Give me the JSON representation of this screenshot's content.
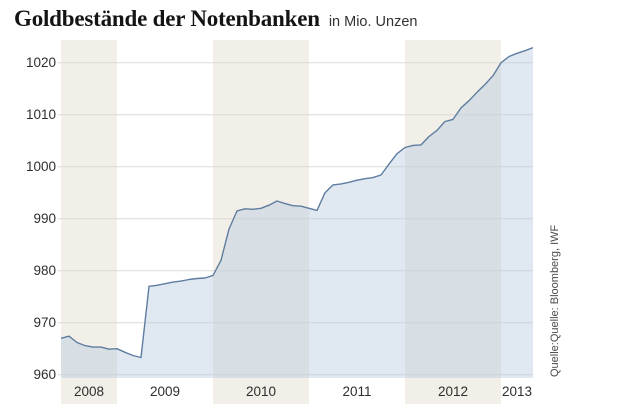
{
  "header": {
    "title": "Goldbestände der Notenbanken",
    "subtitle": "in Mio. Unzen"
  },
  "source": "Quelle:Quelle: Bloomberg, IWF",
  "chart_data": {
    "type": "area",
    "title": "Goldbestände der Notenbanken",
    "unit": "Mio. Unzen",
    "grid": "horizontal gridlines on",
    "legend": "none",
    "ylim": [
      959.5,
      1024.5
    ],
    "y_ticks": [
      960,
      970,
      980,
      990,
      1000,
      1010,
      1020
    ],
    "x_year_labels": [
      "2008",
      "2009",
      "2010",
      "2011",
      "2012",
      "2013"
    ],
    "shaded_year_bands": [
      "2008",
      "2010",
      "2012"
    ],
    "x": [
      "2008-06",
      "2008-07",
      "2008-08",
      "2008-09",
      "2008-10",
      "2008-11",
      "2008-12",
      "2009-01",
      "2009-02",
      "2009-03",
      "2009-04",
      "2009-05",
      "2009-06",
      "2009-07",
      "2009-08",
      "2009-09",
      "2009-10",
      "2009-11",
      "2009-12",
      "2010-01",
      "2010-02",
      "2010-03",
      "2010-04",
      "2010-05",
      "2010-06",
      "2010-07",
      "2010-08",
      "2010-09",
      "2010-10",
      "2010-11",
      "2010-12",
      "2011-01",
      "2011-02",
      "2011-03",
      "2011-04",
      "2011-05",
      "2011-06",
      "2011-07",
      "2011-08",
      "2011-09",
      "2011-10",
      "2011-11",
      "2011-12",
      "2012-01",
      "2012-02",
      "2012-03",
      "2012-04",
      "2012-05",
      "2012-06",
      "2012-07",
      "2012-08",
      "2012-09",
      "2012-10",
      "2012-11",
      "2012-12",
      "2013-01",
      "2013-02",
      "2013-03",
      "2013-04",
      "2013-05"
    ],
    "values": [
      967.0,
      967.4,
      966.2,
      965.6,
      965.3,
      965.3,
      964.9,
      965.0,
      964.3,
      963.7,
      963.3,
      977.0,
      977.2,
      977.5,
      977.8,
      978.0,
      978.3,
      978.5,
      978.6,
      979.1,
      982.0,
      988.0,
      991.5,
      991.9,
      991.8,
      992.0,
      992.6,
      993.4,
      992.9,
      992.5,
      992.4,
      992.0,
      991.6,
      995.0,
      996.5,
      996.7,
      997.0,
      997.4,
      997.7,
      997.9,
      998.4,
      1000.5,
      1002.5,
      1003.7,
      1004.1,
      1004.2,
      1005.8,
      1007.0,
      1008.7,
      1009.1,
      1011.3,
      1012.7,
      1014.3,
      1015.8,
      1017.5,
      1020.0,
      1021.2,
      1021.8,
      1022.3,
      1022.9
    ],
    "colors": {
      "year_band": "#f1efe7",
      "area_fill": "rgba(186,203,225,0.45)",
      "line": "#5f7da0",
      "gridline": "#dcdbd3",
      "axis_text": "#2e2e2e",
      "title_text": "#141414",
      "source_text": "#4a4a4a",
      "background": "#ffffff"
    }
  }
}
